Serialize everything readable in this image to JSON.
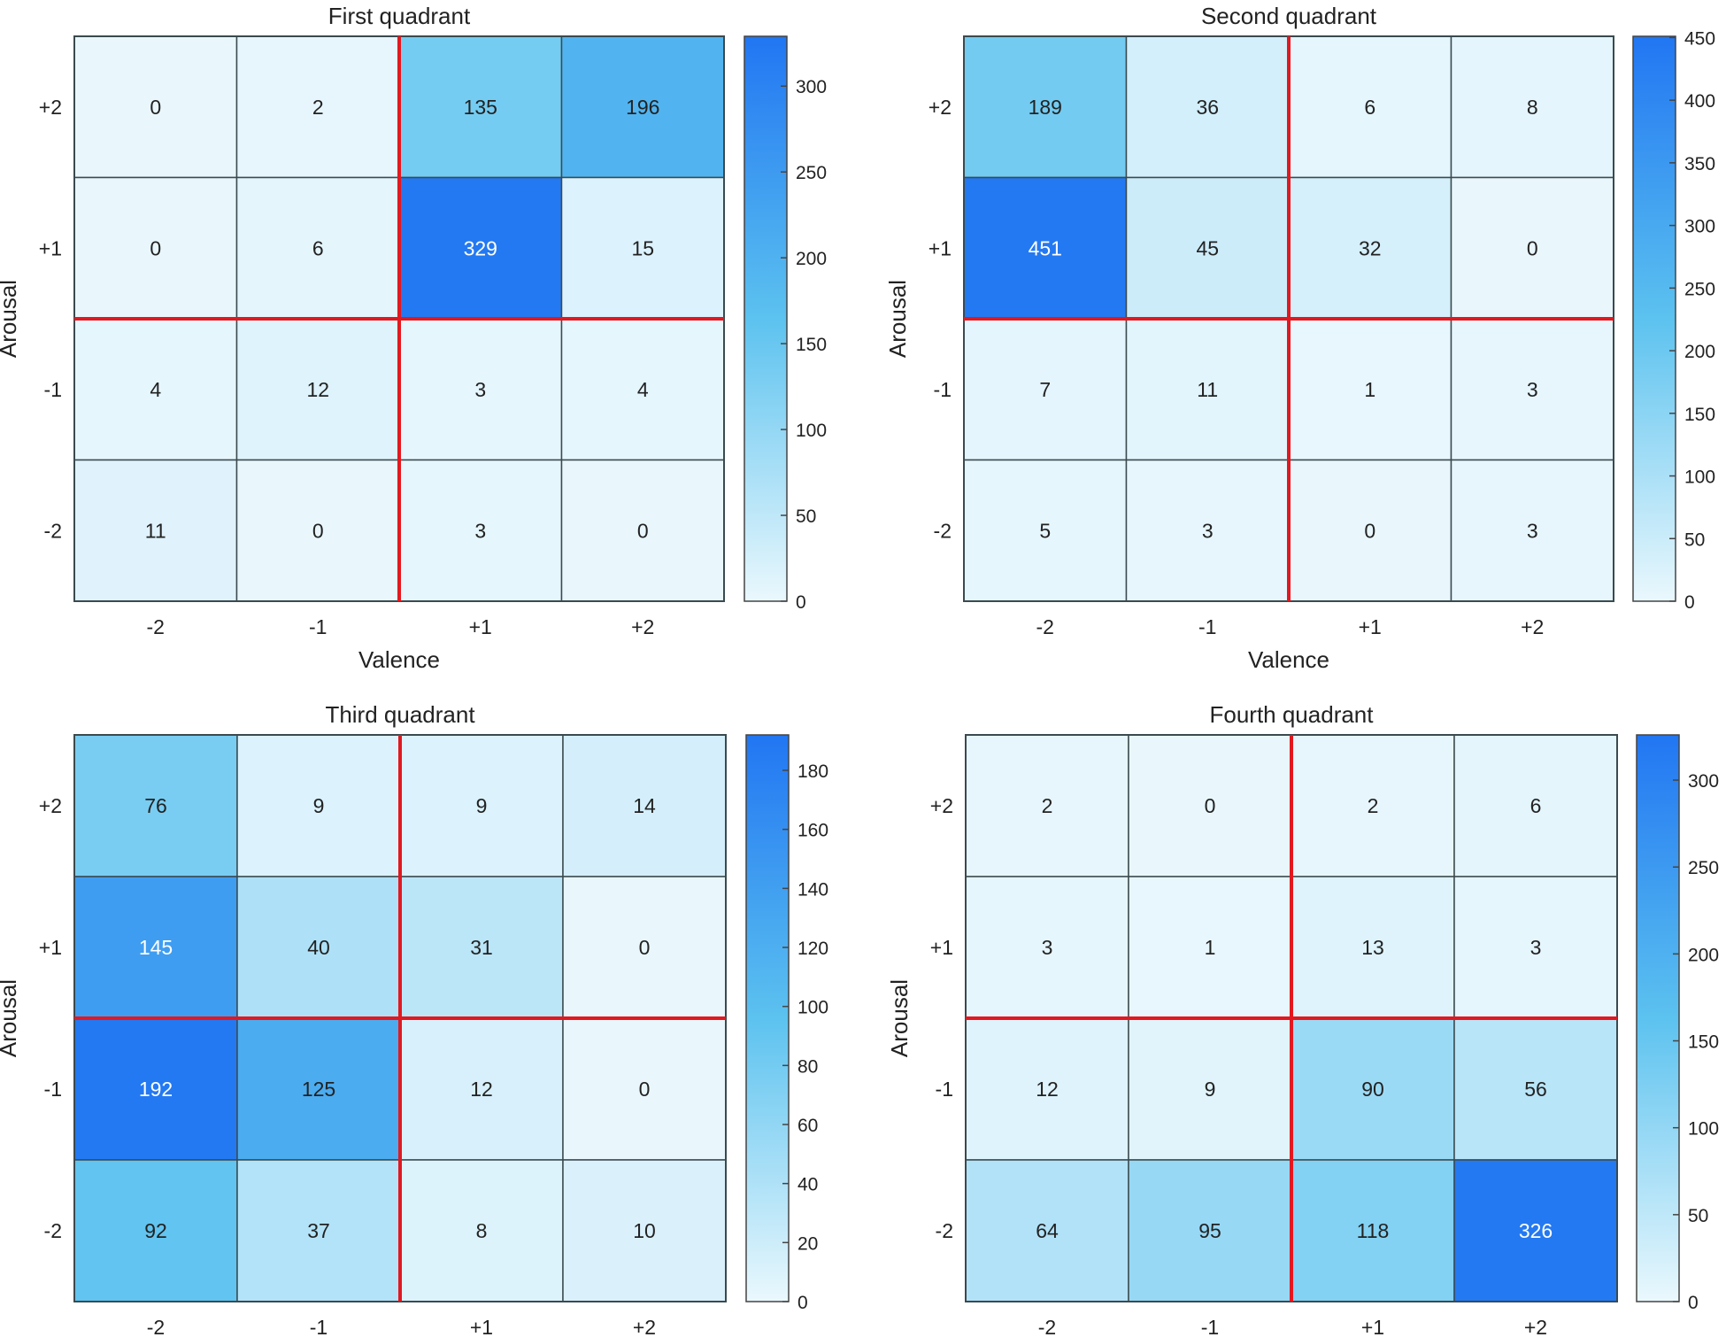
{
  "chart_data": [
    {
      "type": "heatmap",
      "title": "First quadrant",
      "xlabel": "Valence",
      "ylabel": "Arousal",
      "x_categories": [
        "-2",
        "-1",
        "+1",
        "+2"
      ],
      "y_categories": [
        "+2",
        "+1",
        "-1",
        "-2"
      ],
      "values": [
        [
          0,
          2,
          135,
          196
        ],
        [
          0,
          6,
          329,
          15
        ],
        [
          4,
          12,
          3,
          4
        ],
        [
          11,
          0,
          3,
          0
        ]
      ],
      "colorbar": {
        "min": 0,
        "max": 329,
        "ticks": [
          "0",
          "50",
          "100",
          "150",
          "200",
          "250",
          "300"
        ]
      }
    },
    {
      "type": "heatmap",
      "title": "Second quadrant",
      "xlabel": "Valence",
      "ylabel": "Arousal",
      "x_categories": [
        "-2",
        "-1",
        "+1",
        "+2"
      ],
      "y_categories": [
        "+2",
        "+1",
        "-1",
        "-2"
      ],
      "values": [
        [
          189,
          36,
          6,
          8
        ],
        [
          451,
          45,
          32,
          0
        ],
        [
          7,
          11,
          1,
          3
        ],
        [
          5,
          3,
          0,
          3
        ]
      ],
      "colorbar": {
        "min": 0,
        "max": 451,
        "ticks": [
          "0",
          "50",
          "100",
          "150",
          "200",
          "250",
          "300",
          "350",
          "400",
          "450"
        ]
      }
    },
    {
      "type": "heatmap",
      "title": "Third quadrant",
      "xlabel": "",
      "ylabel": "Arousal",
      "x_categories": [
        "-2",
        "-1",
        "+1",
        "+2"
      ],
      "y_categories": [
        "+2",
        "+1",
        "-1",
        "-2"
      ],
      "values": [
        [
          76,
          9,
          9,
          14
        ],
        [
          145,
          40,
          31,
          0
        ],
        [
          192,
          125,
          12,
          0
        ],
        [
          92,
          37,
          8,
          10
        ]
      ],
      "colorbar": {
        "min": 0,
        "max": 192,
        "ticks": [
          "0",
          "20",
          "40",
          "60",
          "80",
          "100",
          "120",
          "140",
          "160",
          "180"
        ]
      }
    },
    {
      "type": "heatmap",
      "title": "Fourth quadrant",
      "xlabel": "",
      "ylabel": "Arousal",
      "x_categories": [
        "-2",
        "-1",
        "+1",
        "+2"
      ],
      "y_categories": [
        "+2",
        "+1",
        "-1",
        "-2"
      ],
      "values": [
        [
          2,
          0,
          2,
          6
        ],
        [
          3,
          1,
          13,
          3
        ],
        [
          12,
          9,
          90,
          56
        ],
        [
          64,
          95,
          118,
          326
        ]
      ],
      "colorbar": {
        "min": 0,
        "max": 326,
        "ticks": [
          "0",
          "50",
          "100",
          "150",
          "200",
          "250",
          "300"
        ]
      }
    }
  ],
  "colors": {
    "low": "#e9f7fd",
    "mid": "#5cc2ef",
    "high": "#2379f2",
    "separator": "#e3181f",
    "grid": "#3a4a4f"
  }
}
